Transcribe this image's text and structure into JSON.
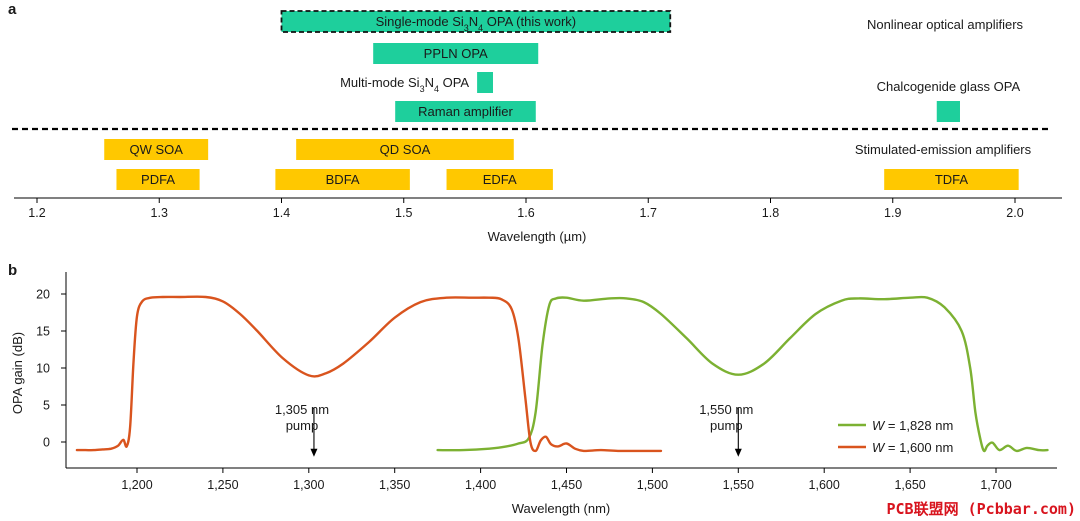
{
  "chart_data": [
    {
      "panel": "a",
      "type": "range-bar",
      "xlabel": "Wavelength (µm)",
      "xlim": [
        1.19,
        2.04
      ],
      "xticks": [
        1.2,
        1.3,
        1.4,
        1.5,
        1.6,
        1.7,
        1.8,
        1.9,
        2.0
      ],
      "xtick_labels": [
        "1.2",
        "1.3",
        "1.4",
        "1.5",
        "1.6",
        "1.7",
        "1.8",
        "1.9",
        "2.0"
      ],
      "categories": [
        "Nonlinear optical amplifiers",
        "Stimulated-emission amplifiers"
      ],
      "colors": {
        "nonlinear": "#1ecf9c",
        "stimulated": "#ffc800"
      },
      "bars": [
        {
          "label": "Single-mode Si3N4 OPA (this work)",
          "start": 1.4,
          "end": 1.718,
          "row": 0,
          "group": "nonlinear",
          "highlight": true,
          "label_pos": "inside"
        },
        {
          "label": "PPLN OPA",
          "start": 1.475,
          "end": 1.61,
          "row": 1,
          "group": "nonlinear",
          "label_pos": "inside"
        },
        {
          "label": "Multi-mode Si3N4 OPA",
          "start": 1.56,
          "end": 1.573,
          "row": 2,
          "group": "nonlinear",
          "label_pos": "left"
        },
        {
          "label": "Raman amplifier",
          "start": 1.493,
          "end": 1.608,
          "row": 3,
          "group": "nonlinear",
          "label_pos": "inside"
        },
        {
          "label": "Chalcogenide glass OPA",
          "start": 1.936,
          "end": 1.955,
          "row": 2.7,
          "group": "nonlinear",
          "label_pos": "above"
        },
        {
          "label": "QW SOA",
          "start": 1.255,
          "end": 1.34,
          "row": 4,
          "group": "stimulated",
          "label_pos": "inside"
        },
        {
          "label": "QD SOA",
          "start": 1.412,
          "end": 1.59,
          "row": 4,
          "group": "stimulated",
          "label_pos": "inside"
        },
        {
          "label": "PDFA",
          "start": 1.265,
          "end": 1.333,
          "row": 5,
          "group": "stimulated",
          "label_pos": "inside"
        },
        {
          "label": "BDFA",
          "start": 1.395,
          "end": 1.505,
          "row": 5,
          "group": "stimulated",
          "label_pos": "inside"
        },
        {
          "label": "EDFA",
          "start": 1.535,
          "end": 1.622,
          "row": 5,
          "group": "stimulated",
          "label_pos": "inside"
        },
        {
          "label": "TDFA",
          "start": 1.893,
          "end": 2.003,
          "row": 5,
          "group": "stimulated",
          "label_pos": "inside"
        }
      ]
    },
    {
      "panel": "b",
      "type": "line",
      "xlabel": "Wavelength (nm)",
      "ylabel": "OPA gain (dB)",
      "xlim": [
        1160,
        1732
      ],
      "ylim": [
        -2.5,
        22
      ],
      "xticks": [
        1200,
        1250,
        1300,
        1350,
        1400,
        1450,
        1500,
        1550,
        1600,
        1650,
        1700
      ],
      "xtick_labels": [
        "1,200",
        "1,250",
        "1,300",
        "1,350",
        "1,400",
        "1,450",
        "1,500",
        "1,550",
        "1,600",
        "1,650",
        "1,700"
      ],
      "yticks": [
        0,
        5,
        10,
        15,
        20
      ],
      "ytick_labels": [
        "0",
        "5",
        "10",
        "15",
        "20"
      ],
      "series": [
        {
          "name_prefix": "W",
          "name_value": " = 1,828 nm",
          "color": "#7cb132",
          "x": [
            1375,
            1390,
            1405,
            1415,
            1422,
            1428,
            1432,
            1436,
            1440,
            1444,
            1450,
            1460,
            1475,
            1485,
            1495,
            1505,
            1520,
            1535,
            1550,
            1565,
            1580,
            1595,
            1610,
            1620,
            1635,
            1650,
            1660,
            1670,
            1680,
            1685,
            1688,
            1691,
            1693,
            1695,
            1698,
            1702,
            1707,
            1712,
            1718,
            1725,
            1730
          ],
          "y": [
            -1.1,
            -1.1,
            -0.9,
            -0.6,
            -0.2,
            0.5,
            4.0,
            13.0,
            18.5,
            19.4,
            19.5,
            19.1,
            19.4,
            19.4,
            18.9,
            17.3,
            14.0,
            10.6,
            9.1,
            10.6,
            14.0,
            17.3,
            19.1,
            19.4,
            19.3,
            19.5,
            19.5,
            18.2,
            15.0,
            10.0,
            4.0,
            0.3,
            -1.2,
            -0.5,
            -0.1,
            -1.1,
            -0.5,
            -1.2,
            -0.8,
            -1.1,
            -1.1
          ]
        },
        {
          "name_prefix": "W",
          "name_value": " = 1,600 nm",
          "color": "#d9541e",
          "x": [
            1165,
            1170,
            1175,
            1180,
            1185,
            1189,
            1192,
            1194,
            1196,
            1198,
            1200,
            1203,
            1208,
            1215,
            1225,
            1240,
            1250,
            1260,
            1270,
            1285,
            1300,
            1310,
            1320,
            1335,
            1350,
            1365,
            1380,
            1395,
            1405,
            1412,
            1418,
            1422,
            1426,
            1429,
            1432,
            1435,
            1438,
            1441,
            1445,
            1450,
            1455,
            1460,
            1470,
            1480,
            1495,
            1505
          ],
          "y": [
            -1.1,
            -1.1,
            -1.1,
            -1.0,
            -0.9,
            -0.5,
            0.3,
            -0.6,
            2.0,
            11.0,
            17.0,
            19.0,
            19.5,
            19.6,
            19.6,
            19.6,
            19.0,
            17.3,
            15.0,
            11.3,
            9.0,
            9.3,
            10.6,
            13.5,
            16.8,
            18.9,
            19.5,
            19.5,
            19.5,
            19.3,
            18.0,
            14.0,
            6.0,
            0.0,
            -1.2,
            0.2,
            0.7,
            -0.3,
            -0.6,
            -0.2,
            -0.9,
            -1.2,
            -1.1,
            -1.2,
            -1.2,
            -1.2
          ]
        }
      ],
      "annotations": [
        {
          "lines": [
            "1,305 nm",
            "pump"
          ],
          "x": 1303,
          "arrow_from": 4,
          "arrow_to": -2
        },
        {
          "lines": [
            "1,550 nm",
            "pump"
          ],
          "x": 1550,
          "arrow_from": 4,
          "arrow_to": -2
        }
      ]
    }
  ],
  "watermark": "PCB联盟网 (Pcbbar.com)"
}
